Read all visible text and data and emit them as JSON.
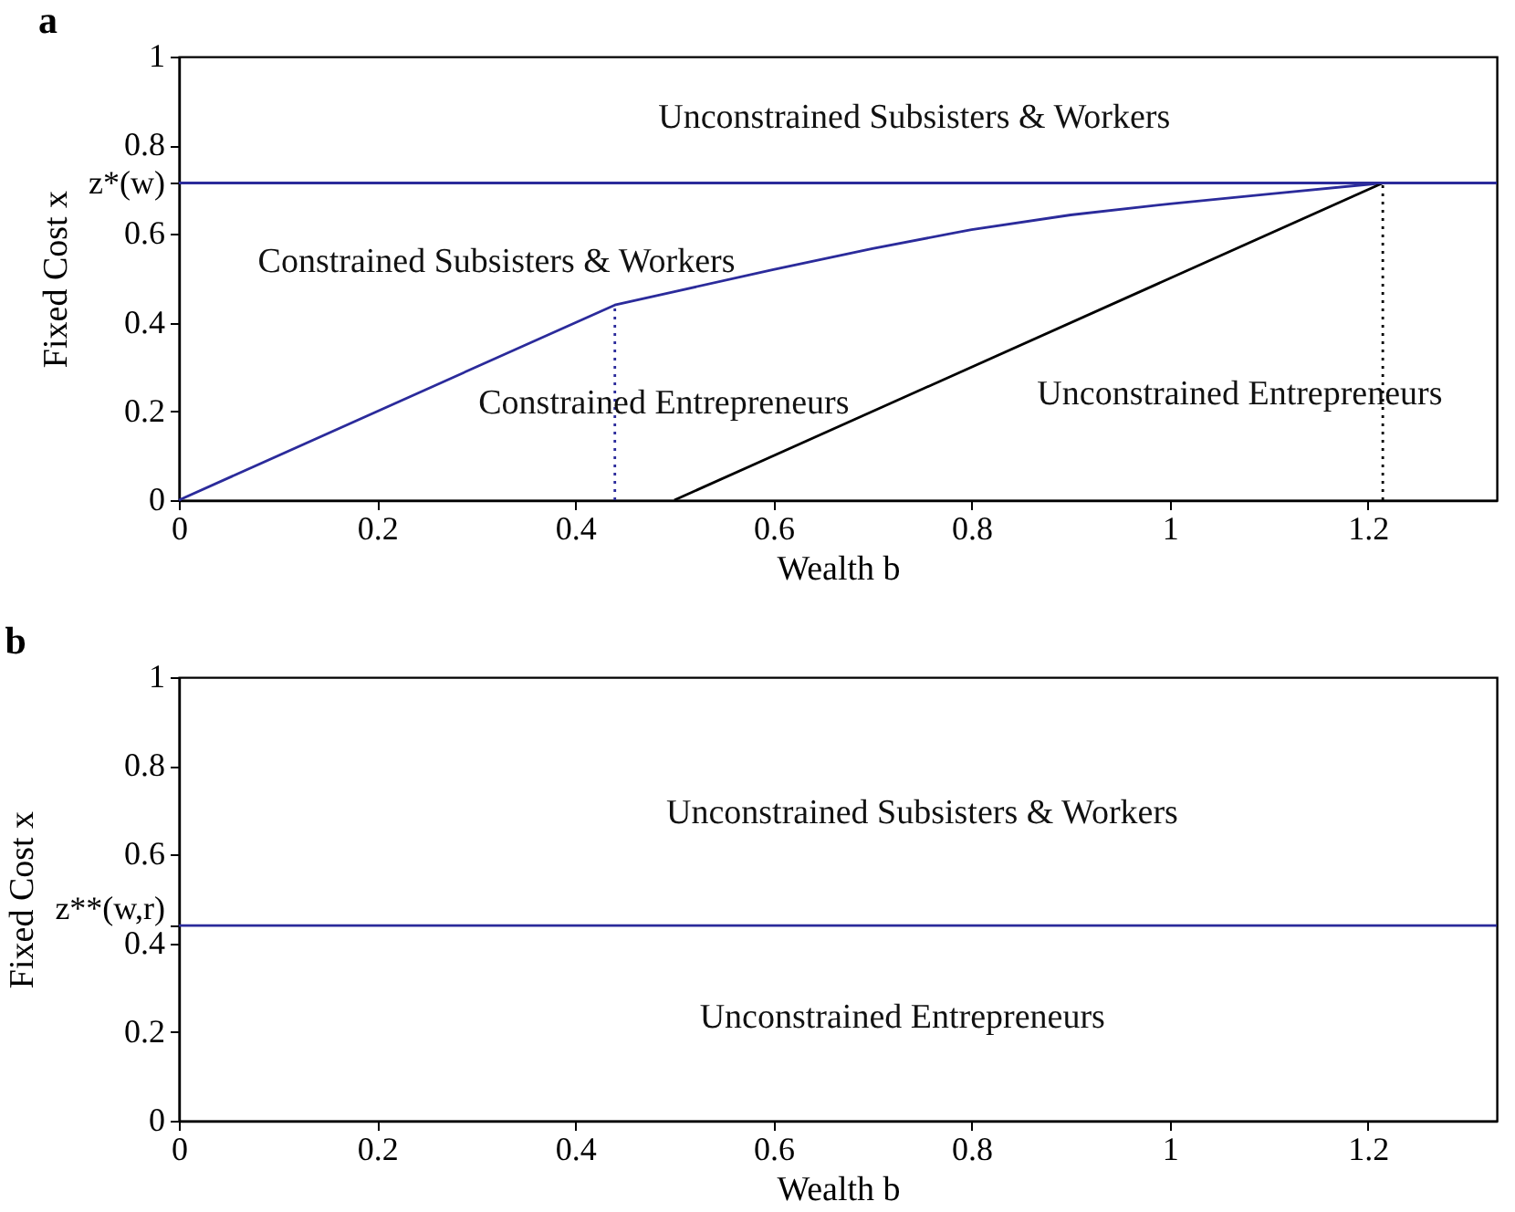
{
  "chart_data": [
    {
      "type": "line",
      "title": "a",
      "xlabel": "Wealth b",
      "ylabel": "Fixed Cost x",
      "xlim": [
        0,
        1.33
      ],
      "ylim": [
        0,
        1
      ],
      "xticks": [
        0,
        0.2,
        0.4,
        0.6,
        0.8,
        1,
        1.2
      ],
      "yticks": [
        0,
        0.2,
        0.4,
        0.6,
        {
          "value": 0.715,
          "label": "z*(w)"
        },
        0.8,
        1
      ],
      "series": [
        {
          "color": "#2b2b9b",
          "x": [
            0,
            0.44,
            0.5,
            0.6,
            0.7,
            0.8,
            0.9,
            1.0,
            1.1,
            1.215
          ],
          "values": [
            0,
            0.44,
            0.47,
            0.52,
            0.567,
            0.61,
            0.643,
            0.668,
            0.69,
            0.715
          ]
        },
        {
          "color": "#000000",
          "x": [
            0.5,
            1.215
          ],
          "values": [
            0,
            0.715
          ]
        },
        {
          "color": "#2b2b9b",
          "x": [
            0.44,
            0.44
          ],
          "values": [
            0,
            0.44
          ],
          "line_style": "dotted"
        },
        {
          "color": "#000000",
          "x": [
            1.215,
            1.215
          ],
          "values": [
            0,
            0.715
          ],
          "line_style": "dotted"
        }
      ],
      "ref_lines": [
        {
          "axis": "y",
          "value": 0.715,
          "color": "#2b2b9b"
        }
      ],
      "annotations": [
        "Unconstrained Subsisters & Workers",
        "Constrained Subsisters & Workers",
        "Constrained Entrepreneurs",
        "Unconstrained Entrepreneurs"
      ]
    },
    {
      "type": "line",
      "title": "b",
      "xlabel": "Wealth b",
      "ylabel": "Fixed Cost x",
      "xlim": [
        0,
        1.33
      ],
      "ylim": [
        0,
        1
      ],
      "xticks": [
        0,
        0.2,
        0.4,
        0.6,
        0.8,
        1,
        1.2
      ],
      "yticks": [
        0,
        0.2,
        0.4,
        {
          "value": 0.44,
          "label": "z**(w,r)"
        },
        0.6,
        0.8,
        1
      ],
      "ref_lines": [
        {
          "axis": "y",
          "value": 0.44,
          "color": "#2b2b9b"
        }
      ],
      "annotations": [
        "Unconstrained Subsisters & Workers",
        "Unconstrained Entrepreneurs"
      ]
    }
  ]
}
